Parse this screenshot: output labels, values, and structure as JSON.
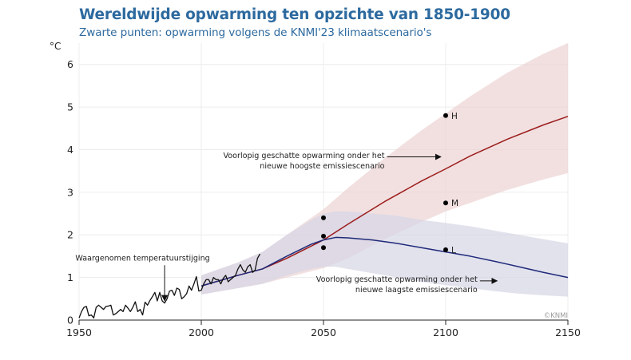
{
  "title": "Wereldwijde opwarming ten opzichte van 1850-1900",
  "subtitle": "Zwarte punten: opwarming volgens de KNMI'23 klimaatscenario's",
  "credit": "©KNMI",
  "colors": {
    "title": "#2d6a9f",
    "observed": "#111111",
    "high": "#9c1c1c",
    "high_band": "#ecd3d3",
    "low": "#1f2a7a",
    "low_band": "#d5d6e6",
    "scenario_points": "#000000",
    "grid": "#ececec"
  },
  "chart_data": {
    "type": "line",
    "ylabel": "°C",
    "xlim": [
      1950,
      2150
    ],
    "ylim": [
      0,
      6.5
    ],
    "xticks": [
      1950,
      2000,
      2050,
      2100,
      2150
    ],
    "yticks": [
      0,
      1,
      2,
      3,
      4,
      5,
      6
    ],
    "grid": true,
    "observed": {
      "x": [
        1950,
        1951,
        1952,
        1953,
        1954,
        1955,
        1956,
        1957,
        1958,
        1959,
        1960,
        1961,
        1962,
        1963,
        1964,
        1965,
        1966,
        1967,
        1968,
        1969,
        1970,
        1971,
        1972,
        1973,
        1974,
        1975,
        1976,
        1977,
        1978,
        1979,
        1980,
        1981,
        1982,
        1983,
        1984,
        1985,
        1986,
        1987,
        1988,
        1989,
        1990,
        1991,
        1992,
        1993,
        1994,
        1995,
        1996,
        1997,
        1998,
        1999,
        2000,
        2001,
        2002,
        2003,
        2004,
        2005,
        2006,
        2007,
        2008,
        2009,
        2010,
        2011,
        2012,
        2013,
        2014,
        2015,
        2016,
        2017,
        2018,
        2019,
        2020,
        2021,
        2022,
        2023,
        2024
      ],
      "y": [
        0.05,
        0.2,
        0.3,
        0.32,
        0.1,
        0.12,
        0.05,
        0.3,
        0.35,
        0.3,
        0.25,
        0.32,
        0.33,
        0.35,
        0.12,
        0.15,
        0.2,
        0.25,
        0.2,
        0.35,
        0.28,
        0.2,
        0.3,
        0.43,
        0.2,
        0.25,
        0.12,
        0.42,
        0.35,
        0.46,
        0.55,
        0.65,
        0.45,
        0.65,
        0.45,
        0.4,
        0.5,
        0.68,
        0.7,
        0.58,
        0.75,
        0.72,
        0.5,
        0.55,
        0.62,
        0.8,
        0.7,
        0.85,
        1.02,
        0.68,
        0.7,
        0.85,
        0.95,
        0.95,
        0.85,
        1.0,
        0.95,
        0.95,
        0.85,
        0.98,
        1.05,
        0.9,
        0.95,
        1.0,
        1.05,
        1.2,
        1.3,
        1.18,
        1.12,
        1.25,
        1.3,
        1.12,
        1.17,
        1.45,
        1.55
      ]
    },
    "series": [
      {
        "label": "Voorlopig geschatte opwarming onder het nieuwe hoogste emissiescenario",
        "x": [
          2000,
          2015,
          2025,
          2035,
          2050,
          2060,
          2075,
          2090,
          2100,
          2110,
          2125,
          2140,
          2150
        ],
        "y": [
          0.8,
          1.05,
          1.2,
          1.45,
          1.88,
          2.25,
          2.78,
          3.26,
          3.55,
          3.85,
          4.24,
          4.58,
          4.78
        ],
        "band_low": [
          0.6,
          0.75,
          0.85,
          1.0,
          1.22,
          1.45,
          1.9,
          2.3,
          2.55,
          2.75,
          3.05,
          3.3,
          3.45
        ],
        "band_high": [
          1.05,
          1.35,
          1.6,
          2.0,
          2.6,
          3.1,
          3.8,
          4.45,
          4.85,
          5.25,
          5.8,
          6.25,
          6.5
        ]
      },
      {
        "label": "Voorlopig geschatte opwarming onder het nieuwe laagste emissiescenario",
        "x": [
          2000,
          2015,
          2025,
          2035,
          2045,
          2050,
          2055,
          2060,
          2070,
          2080,
          2090,
          2100,
          2110,
          2120,
          2130,
          2140,
          2150
        ],
        "y": [
          0.8,
          1.05,
          1.2,
          1.5,
          1.78,
          1.88,
          1.94,
          1.93,
          1.88,
          1.8,
          1.7,
          1.6,
          1.5,
          1.38,
          1.25,
          1.12,
          1.0
        ],
        "band_low": [
          0.6,
          0.75,
          0.85,
          1.05,
          1.2,
          1.25,
          1.25,
          1.2,
          1.1,
          1.0,
          0.9,
          0.82,
          0.75,
          0.68,
          0.62,
          0.58,
          0.55
        ],
        "band_high": [
          1.05,
          1.35,
          1.6,
          2.0,
          2.35,
          2.5,
          2.55,
          2.55,
          2.5,
          2.45,
          2.35,
          2.28,
          2.2,
          2.1,
          2.0,
          1.9,
          1.8
        ]
      }
    ],
    "scenario_points": [
      {
        "x": 2050,
        "y": 2.4,
        "label": ""
      },
      {
        "x": 2050,
        "y": 1.97,
        "label": ""
      },
      {
        "x": 2050,
        "y": 1.7,
        "label": ""
      },
      {
        "x": 2100,
        "y": 4.8,
        "label": "H"
      },
      {
        "x": 2100,
        "y": 2.75,
        "label": "M"
      },
      {
        "x": 2100,
        "y": 1.65,
        "label": "L"
      }
    ],
    "annotations": [
      {
        "lines": [
          "Waargenomen temperatuurstijging"
        ],
        "arrow_to": [
          1985,
          0.4
        ],
        "anchor": "middle",
        "text_at": [
          1976,
          1.4
        ]
      },
      {
        "lines": [
          "Voorlopig geschatte opwarming onder het",
          "nieuwe hoogste emissiescenario"
        ],
        "arrow_from": [
          2076,
          3.83
        ],
        "arrow_to": [
          2098,
          3.83
        ],
        "anchor": "end",
        "text_at": [
          2075,
          3.8
        ]
      },
      {
        "lines": [
          "Voorlopig geschatte opwarming onder het",
          "nieuwe laagste emissiescenario"
        ],
        "arrow_from": [
          2114,
          0.92
        ],
        "arrow_to": [
          2121,
          0.92
        ],
        "anchor": "end",
        "text_at": [
          2113,
          0.9
        ]
      }
    ]
  }
}
